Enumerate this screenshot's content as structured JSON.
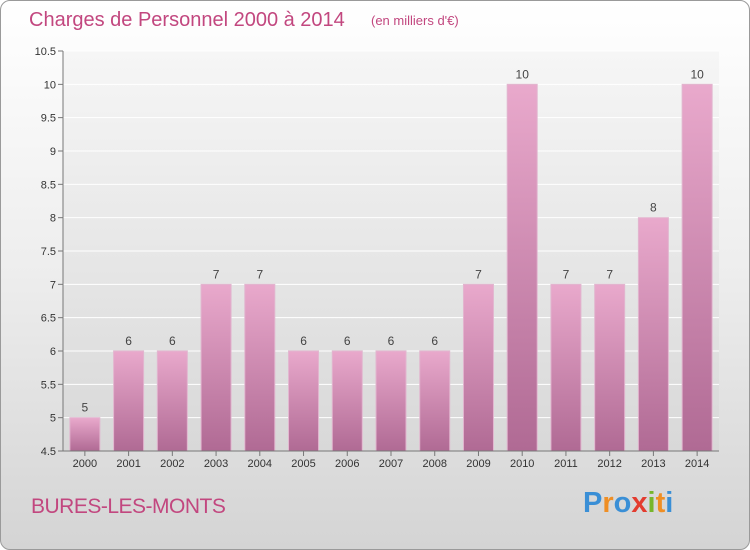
{
  "header": {
    "title": "Charges de Personnel 2000 à 2014",
    "subtitle": "(en milliers d'€)"
  },
  "footer": {
    "commune": "BURES-LES-MONTS",
    "brand": "Proxiti",
    "brand_letters": [
      {
        "ch": "P",
        "color": "#3a8fd6"
      },
      {
        "ch": "r",
        "color": "#ef8f25"
      },
      {
        "ch": "o",
        "color": "#3a8fd6"
      },
      {
        "ch": "x",
        "color": "#e33c2f"
      },
      {
        "ch": "i",
        "color": "#77b62c"
      },
      {
        "ch": "t",
        "color": "#ef8f25"
      },
      {
        "ch": "i",
        "color": "#3a8fd6"
      }
    ]
  },
  "colors": {
    "accent": "#c2477f",
    "bar_light": "#e9a9cc",
    "bar_dark": "#b06a94"
  },
  "chart_data": {
    "type": "bar",
    "title": "Charges de Personnel 2000 à 2014",
    "subtitle": "(en milliers d'€)",
    "categories": [
      "2000",
      "2001",
      "2002",
      "2003",
      "2004",
      "2005",
      "2006",
      "2007",
      "2008",
      "2009",
      "2010",
      "2011",
      "2012",
      "2013",
      "2014"
    ],
    "values": [
      5,
      6,
      6,
      7,
      7,
      6,
      6,
      6,
      6,
      7,
      10,
      7,
      7,
      8,
      10
    ],
    "ylim": [
      4.5,
      10.5
    ],
    "yticks": [
      "4.5",
      "5",
      "5.5",
      "6",
      "6.5",
      "7",
      "7.5",
      "8",
      "8.5",
      "9",
      "9.5",
      "10",
      "10.5"
    ],
    "grid": true,
    "data_labels": true
  }
}
